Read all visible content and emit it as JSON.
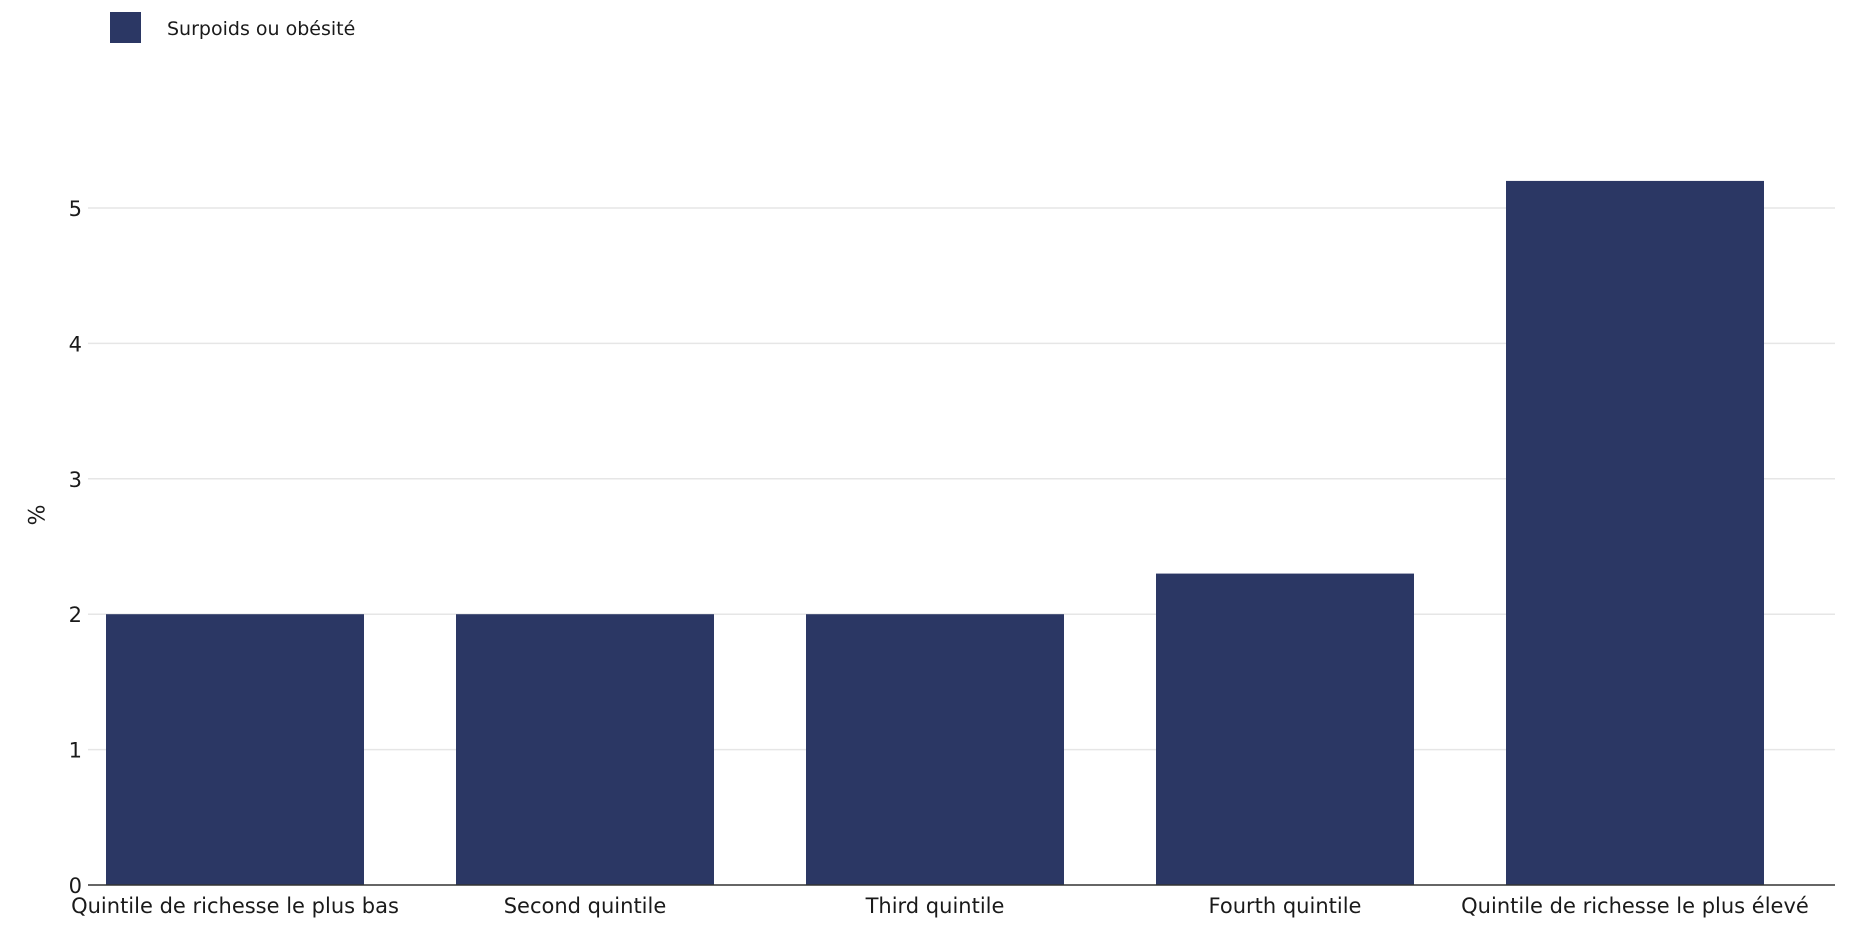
{
  "chart_data": {
    "type": "bar",
    "categories": [
      "Quintile de richesse le plus bas",
      "Second quintile",
      "Third quintile",
      "Fourth quintile",
      "Quintile de richesse le plus élevé"
    ],
    "series": [
      {
        "name": "Surpoids ou obésité",
        "color": "#2b3764",
        "values": [
          2.0,
          2.0,
          2.0,
          2.3,
          5.2
        ]
      }
    ],
    "title": "",
    "xlabel": "",
    "ylabel": "%",
    "ylim": [
      0,
      5.5
    ],
    "yticks": [
      0,
      1,
      2,
      3,
      4,
      5
    ],
    "grid": true,
    "legend_position": "top-left"
  },
  "colors": {
    "grid": "#e6e6e6",
    "axis": "#333333",
    "text": "#1a1a1a"
  }
}
